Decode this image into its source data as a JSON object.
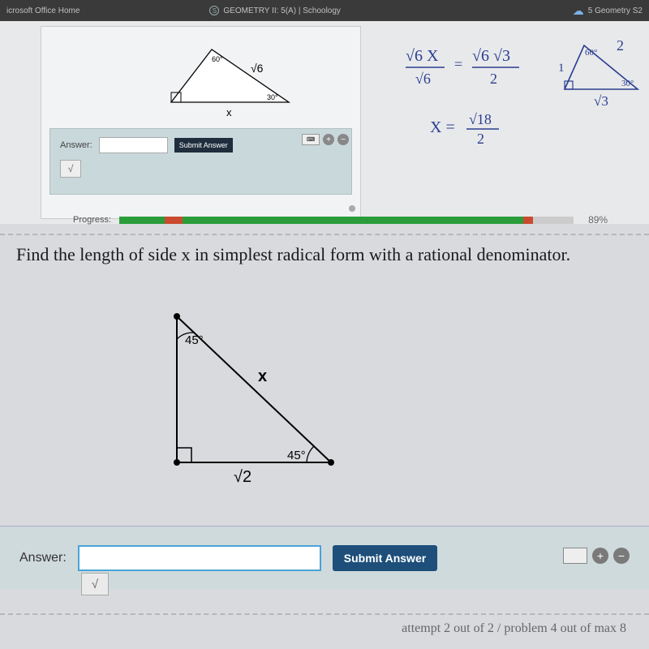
{
  "browser": {
    "tabs": [
      {
        "label": "icrosoft Office Home"
      },
      {
        "icon": "S",
        "label": "GEOMETRY II: 5(A) | Schoology"
      },
      {
        "icon": "cloud",
        "label": "5 Geometry S2"
      }
    ]
  },
  "top_problem": {
    "triangle": {
      "angle_top": "60°",
      "angle_right": "30°",
      "hypotenuse_label": "√6",
      "base_label": "x",
      "stroke": "#000000",
      "fill": "#ffffff"
    },
    "answer_label": "Answer:",
    "submit_label": "Submit Answer",
    "sqrt_button": "√",
    "keyboard_icon": "⌨",
    "plus": "+",
    "minus": "−"
  },
  "handwritten": {
    "frac1_top": "√6 X",
    "frac1_bottom": "√6",
    "equals": "=",
    "frac2_top": "√6 √3",
    "frac2_bottom": "2",
    "line2_lhs": "X =",
    "line2_top": "√18",
    "line2_bottom": "2",
    "triangle": {
      "left_side": "1",
      "top_side": "2",
      "angle_tl": "60°",
      "angle_br": "30°",
      "base": "√3"
    },
    "color": "#2a3d8f"
  },
  "progress": {
    "label": "Progress:",
    "percent_label": "89%",
    "segments": [
      {
        "color": "#2a9d3a",
        "width_pct": 10
      },
      {
        "color": "#c94a2f",
        "width_pct": 4
      },
      {
        "color": "#2a9d3a",
        "width_pct": 75
      },
      {
        "color": "#c94a2f",
        "width_pct": 2
      },
      {
        "color": "#cccccc",
        "width_pct": 9
      }
    ]
  },
  "question": {
    "text": "Find the length of side x in simplest radical form with a rational denominator.",
    "triangle": {
      "angle_top": "45°",
      "angle_bottom_right": "45°",
      "hypotenuse_label": "x",
      "base_label": "√2",
      "stroke": "#000000",
      "vertex_fill": "#000000"
    }
  },
  "bottom_answer": {
    "label": "Answer:",
    "submit_label": "Submit Answer",
    "sqrt_button": "√",
    "plus": "+",
    "minus": "−"
  },
  "attempt_text": "attempt 2 out of 2 / problem 4 out of max 8",
  "colors": {
    "page_bg": "#d8dadd",
    "panel_bg": "#c9d8da",
    "submit_dark": "#1f2d3d",
    "submit_blue": "#1d4f7a",
    "input_focus": "#4aa3d8"
  }
}
